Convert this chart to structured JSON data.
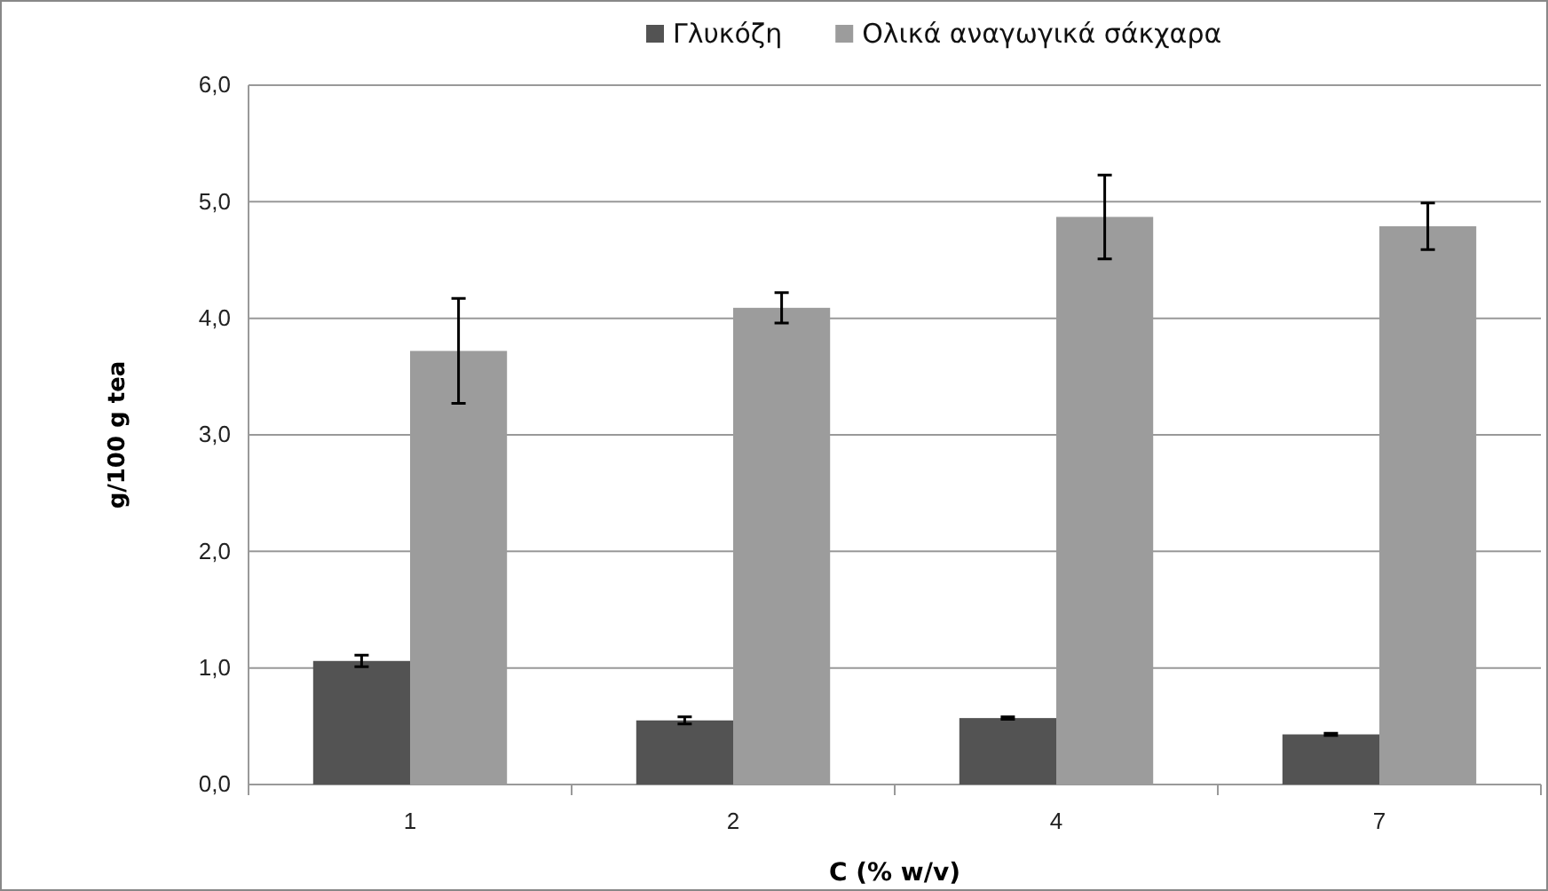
{
  "chart_data": {
    "type": "bar",
    "xlabel": "C (% w/v)",
    "ylabel": "g/100 g tea",
    "categories": [
      "1",
      "2",
      "4",
      "7"
    ],
    "series": [
      {
        "name": "Γλυκόζη",
        "color": "#535353",
        "values": [
          1.06,
          0.55,
          0.57,
          0.43
        ],
        "errors": [
          0.05,
          0.03,
          0.01,
          0.01
        ]
      },
      {
        "name": "Ολικά αναγωγικά σάκχαρα",
        "color": "#9c9c9c",
        "values": [
          3.72,
          4.09,
          4.87,
          4.79
        ],
        "errors": [
          0.45,
          0.13,
          0.36,
          0.2
        ]
      }
    ],
    "ylim": [
      0,
      6
    ],
    "yticks": [
      {
        "value": 0,
        "label": "0,0"
      },
      {
        "value": 1,
        "label": "1,0"
      },
      {
        "value": 2,
        "label": "2,0"
      },
      {
        "value": 3,
        "label": "3,0"
      },
      {
        "value": 4,
        "label": "4,0"
      },
      {
        "value": 5,
        "label": "5,0"
      },
      {
        "value": 6,
        "label": "6,0"
      }
    ],
    "grid": "y",
    "legend": "top"
  }
}
